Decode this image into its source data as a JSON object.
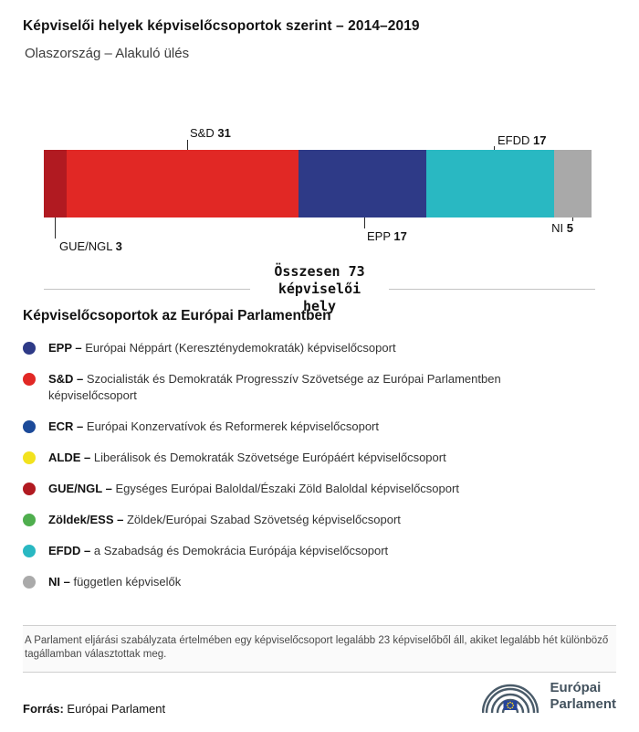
{
  "chart_data": {
    "type": "bar",
    "variant": "horizontal-stacked",
    "title": "Képviselői helyek képviselőcsoportok szerint – 2014–2019",
    "subtitle": "Olaszország – Alakuló ülés",
    "total_seats": 73,
    "total_label": "Összesen 73\nképviselői\nhely",
    "categories": [
      "GUE/NGL",
      "S&D",
      "EPP",
      "EFDD",
      "NI"
    ],
    "values": [
      3,
      31,
      17,
      17,
      5
    ],
    "colors": [
      "#b11a21",
      "#e12825",
      "#2e3a87",
      "#29b8c2",
      "#a9a9a9"
    ],
    "xlim": [
      0,
      73
    ],
    "legend_position": "below",
    "callouts": [
      {
        "id": "gue-ngl",
        "name": "GUE/NGL",
        "value": "3",
        "position": "below"
      },
      {
        "id": "sd",
        "name": "S&D",
        "value": "31",
        "position": "above"
      },
      {
        "id": "epp",
        "name": "EPP",
        "value": "17",
        "position": "below"
      },
      {
        "id": "efdd",
        "name": "EFDD",
        "value": "17",
        "position": "above"
      },
      {
        "id": "ni",
        "name": "NI",
        "value": "5",
        "position": "below"
      }
    ]
  },
  "legend": {
    "heading": "Képviselőcsoportok az Európai Parlamentben",
    "items": [
      {
        "id": "epp",
        "abbr": "EPP –",
        "desc": "Európai Néppárt (Kereszténydemokraták) képviselőcsoport",
        "color": "#2e3a87"
      },
      {
        "id": "sd",
        "abbr": "S&D –",
        "desc": "Szocialisták és Demokraták Progresszív Szövetsége az Európai Parlamentben képviselőcsoport",
        "color": "#e12825"
      },
      {
        "id": "ecr",
        "abbr": "ECR –",
        "desc": "Európai Konzervatívok és Reformerek képviselőcsoport",
        "color": "#1c4a99"
      },
      {
        "id": "alde",
        "abbr": "ALDE –",
        "desc": "Liberálisok és Demokraták Szövetsége Európáért képviselőcsoport",
        "color": "#f2e21e"
      },
      {
        "id": "gue-ngl",
        "abbr": "GUE/NGL –",
        "desc": "Egységes Európai Baloldal/Északi Zöld Baloldal képviselőcsoport",
        "color": "#b11a21"
      },
      {
        "id": "zoldek-ess",
        "abbr": "Zöldek/ESS –",
        "desc": "Zöldek/Európai Szabad Szövetség képviselőcsoport",
        "color": "#4fae4e"
      },
      {
        "id": "efdd",
        "abbr": "EFDD –",
        "desc": "a Szabadság és Demokrácia Európája képviselőcsoport",
        "color": "#29b8c2"
      },
      {
        "id": "ni",
        "abbr": "NI –",
        "desc": "független képviselők",
        "color": "#aaaaaa"
      }
    ]
  },
  "footer": {
    "note": "A Parlament eljárási szabályzata értelmében egy képviselőcsoport legalább 23 képviselőből áll, akiket legalább hét különböző tagállamban választottak meg.",
    "source_label": "Forrás:",
    "source_value": "Európai Parlament",
    "logo_line1": "Európai",
    "logo_line2": "Parlament"
  }
}
